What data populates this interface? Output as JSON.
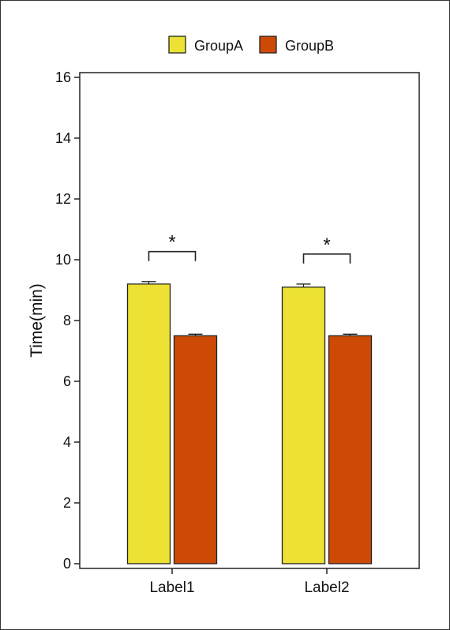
{
  "chart_data": {
    "type": "bar",
    "categories": [
      "Label1",
      "Label2"
    ],
    "series": [
      {
        "name": "GroupA",
        "color": "#ede234",
        "values": [
          9.2,
          9.1
        ],
        "errors": [
          0.08,
          0.1
        ]
      },
      {
        "name": "GroupB",
        "color": "#cc4a06",
        "values": [
          7.5,
          7.5
        ],
        "errors": [
          0.05,
          0.05
        ]
      }
    ],
    "title": "",
    "xlabel": "",
    "ylabel": "Time(min)",
    "ylim": [
      0,
      16
    ],
    "yticks": [
      0,
      2,
      4,
      6,
      8,
      10,
      12,
      14,
      16
    ],
    "grid": false,
    "legend_position": "top-center",
    "annotations": [
      {
        "category": "Label1",
        "text": "*",
        "type": "significance-bracket"
      },
      {
        "category": "Label2",
        "text": "*",
        "type": "significance-bracket"
      }
    ]
  }
}
